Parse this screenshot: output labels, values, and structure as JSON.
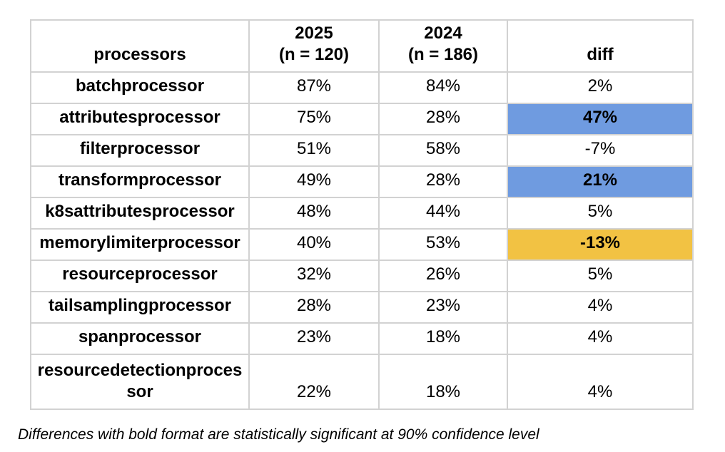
{
  "colors": {
    "significant_increase_bg": "#6f9be0",
    "significant_decrease_bg": "#f2c243",
    "table_border": "#d2d2d2",
    "text": "#000000",
    "background": "#ffffff"
  },
  "chart_data": {
    "type": "table",
    "value_format": "percent",
    "columns": [
      {
        "id": "processor",
        "header_lines": [
          "processors"
        ]
      },
      {
        "id": "y2025",
        "header_lines": [
          "2025",
          "(n = 120)"
        ]
      },
      {
        "id": "y2024",
        "header_lines": [
          "2024",
          "(n = 186)"
        ]
      },
      {
        "id": "diff",
        "header_lines": [
          "diff"
        ]
      }
    ],
    "rows": [
      {
        "processor": "batchprocessor",
        "y2025": 87,
        "y2024": 84,
        "diff": 2,
        "highlight": null
      },
      {
        "processor": "attributesprocessor",
        "y2025": 75,
        "y2024": 28,
        "diff": 47,
        "highlight": "blue"
      },
      {
        "processor": "filterprocessor",
        "y2025": 51,
        "y2024": 58,
        "diff": -7,
        "highlight": null
      },
      {
        "processor": "transformprocessor",
        "y2025": 49,
        "y2024": 28,
        "diff": 21,
        "highlight": "blue"
      },
      {
        "processor": "k8sattributesprocessor",
        "y2025": 48,
        "y2024": 44,
        "diff": 5,
        "highlight": null
      },
      {
        "processor": "memorylimiterprocessor",
        "y2025": 40,
        "y2024": 53,
        "diff": -13,
        "highlight": "orange"
      },
      {
        "processor": "resourceprocessor",
        "y2025": 32,
        "y2024": 26,
        "diff": 5,
        "highlight": null
      },
      {
        "processor": "tailsamplingprocessor",
        "y2025": 28,
        "y2024": 23,
        "diff": 4,
        "highlight": null
      },
      {
        "processor": "spanprocessor",
        "y2025": 23,
        "y2024": 18,
        "diff": 4,
        "highlight": null
      },
      {
        "processor": "resourcedetectionprocessor",
        "y2025": 22,
        "y2024": 18,
        "diff": 4,
        "highlight": null
      }
    ],
    "footnote": "Differences with bold format are statistically significant at 90% confidence level"
  }
}
